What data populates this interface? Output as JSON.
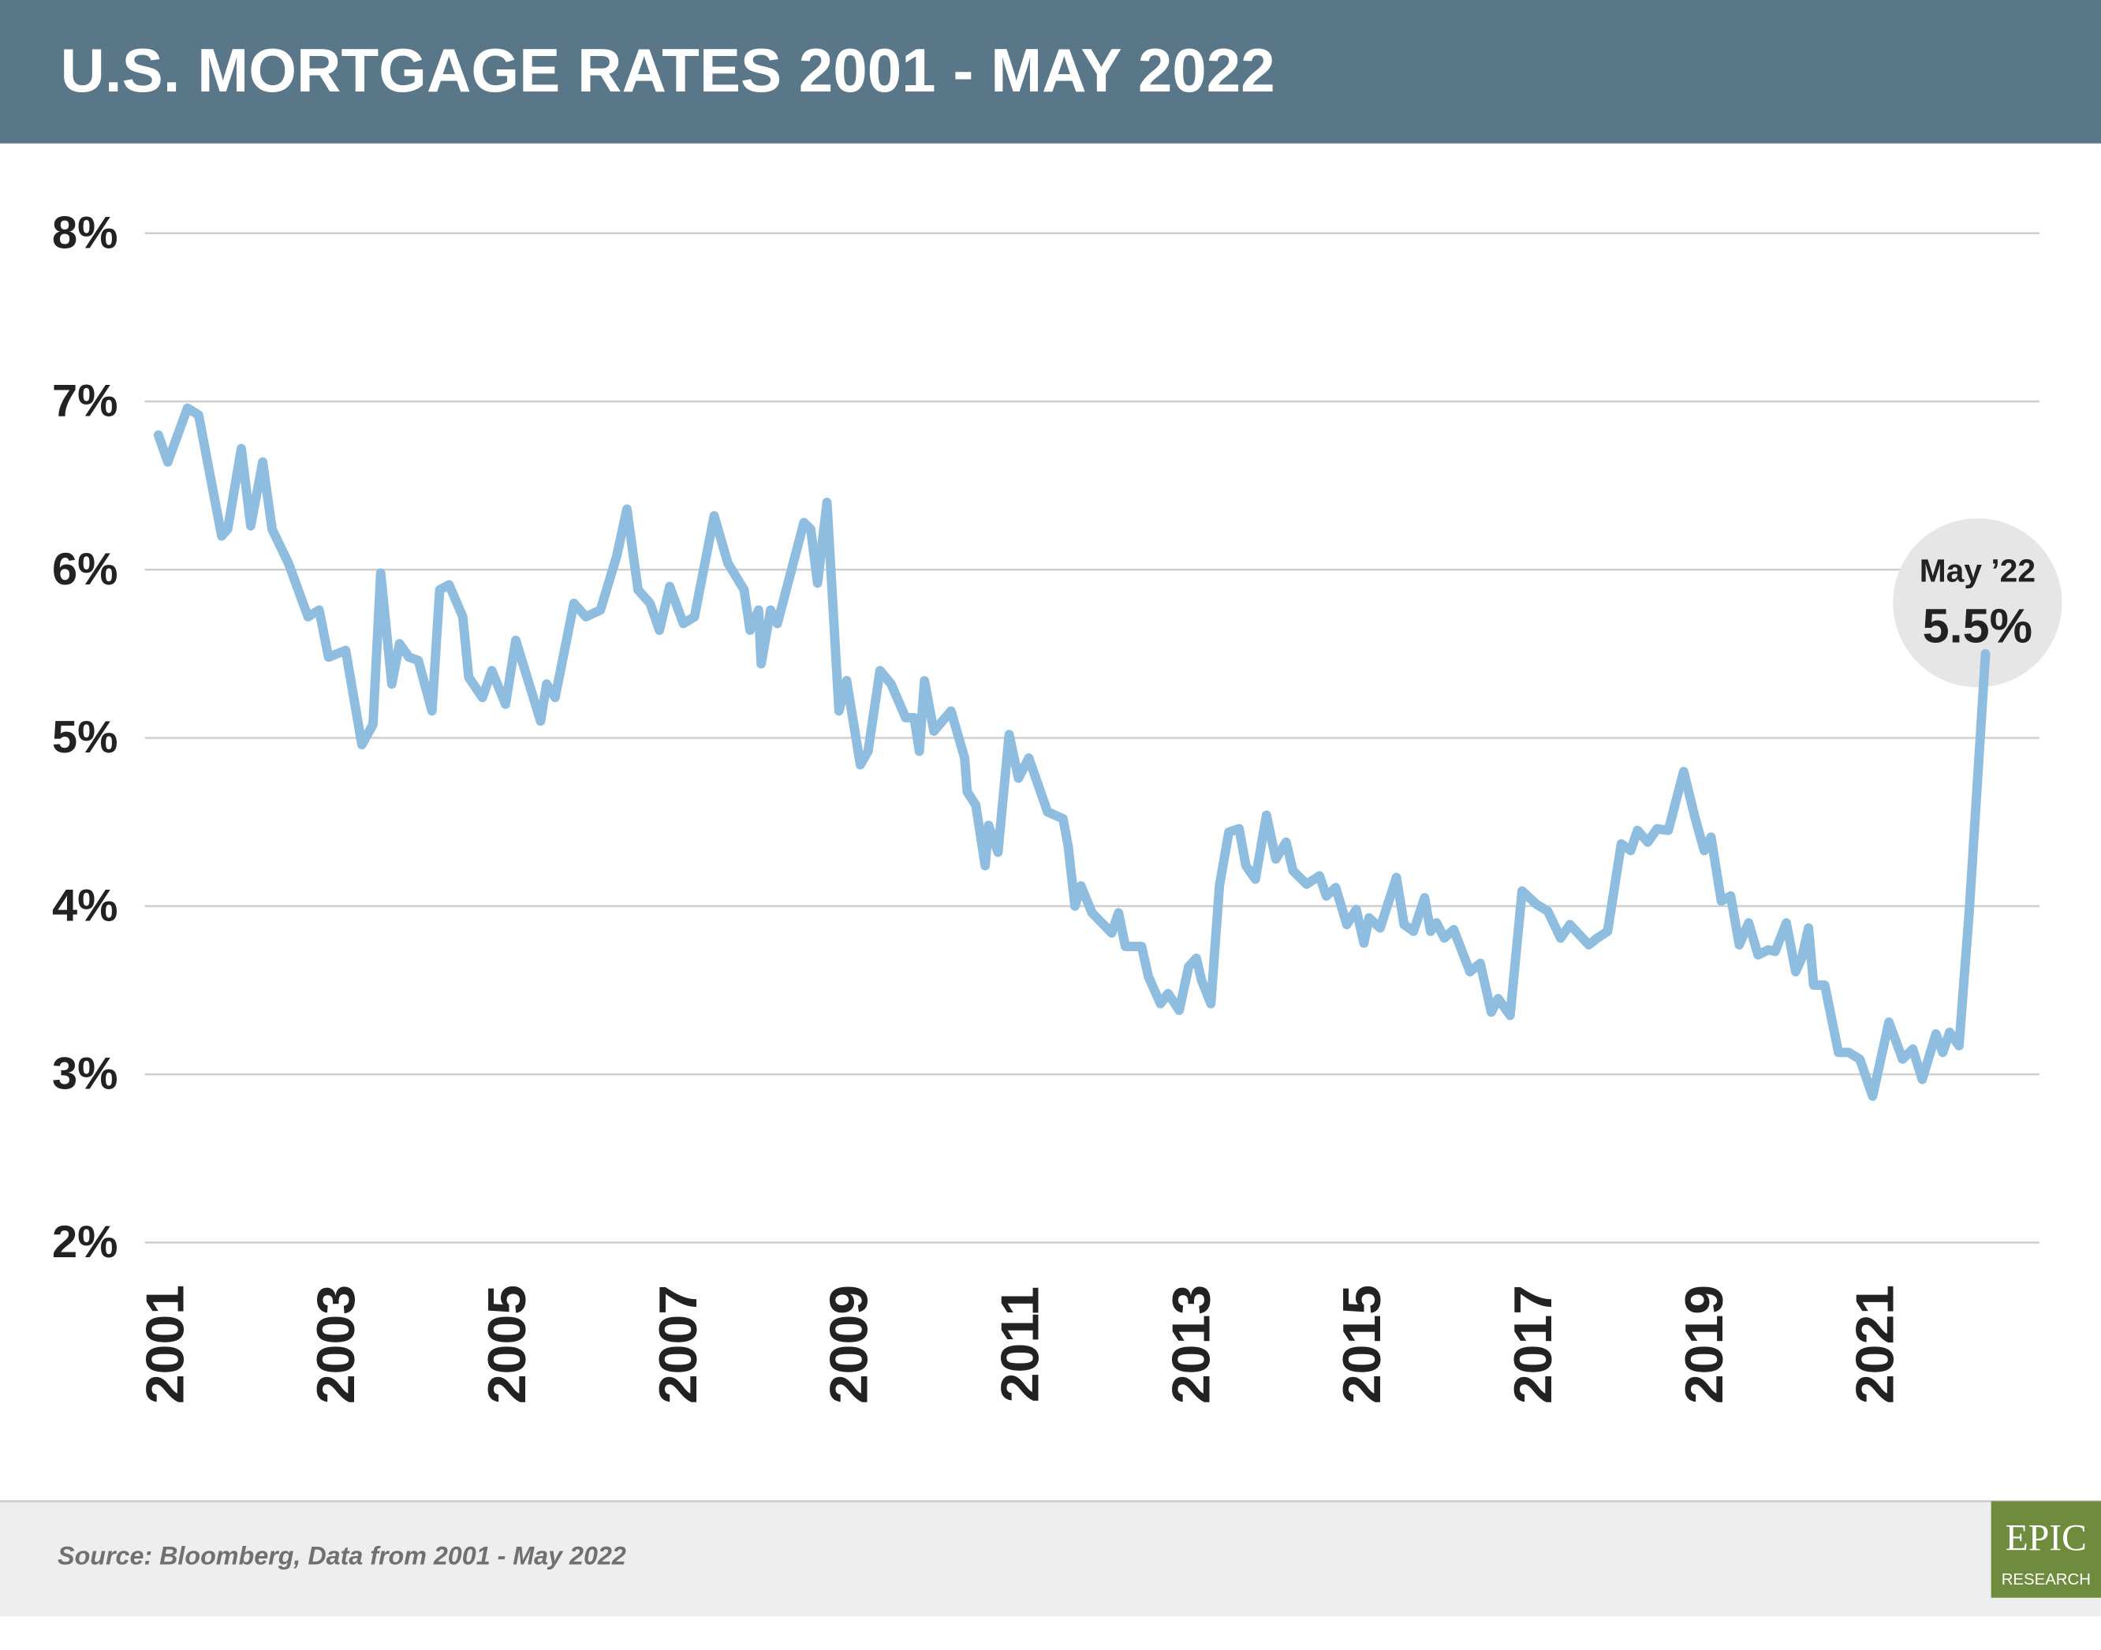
{
  "chart_data": {
    "type": "line",
    "title": "U.S. MORTGAGE RATES 2001 - MAY 2022",
    "source": "Source: Bloomberg, Data from 2001 - May 2022",
    "logo": {
      "top": "EPIC",
      "bottom": "RESEARCH"
    },
    "annotation": {
      "date": "May ’22",
      "text": "5.5%"
    },
    "xlim": [
      2000.84,
      2023.0
    ],
    "xticks": [
      2001,
      2003,
      2005,
      2007,
      2009,
      2011,
      2013,
      2015,
      2017,
      2019,
      2021
    ],
    "ylim": [
      2,
      8
    ],
    "yticks": [
      {
        "value": 2,
        "label": "2%"
      },
      {
        "value": 3,
        "label": "3%"
      },
      {
        "value": 4,
        "label": "4%"
      },
      {
        "value": 5,
        "label": "5%"
      },
      {
        "value": 6,
        "label": "6%"
      },
      {
        "value": 7,
        "label": "7%"
      },
      {
        "value": 8,
        "label": "8%"
      }
    ],
    "grid": true,
    "series": [
      {
        "color": "#8fbde0",
        "x": [
          2001.0,
          2001.11,
          2001.34,
          2001.47,
          2001.74,
          2001.81,
          2001.97,
          2002.08,
          2002.22,
          2002.33,
          2002.52,
          2002.75,
          2002.88,
          2002.99,
          2003.19,
          2003.38,
          2003.51,
          2003.6,
          2003.73,
          2003.82,
          2003.93,
          2004.04,
          2004.2,
          2004.29,
          2004.4,
          2004.56,
          2004.63,
          2004.79,
          2004.9,
          2005.06,
          2005.18,
          2005.47,
          2005.54,
          2005.64,
          2005.86,
          2006.0,
          2006.17,
          2006.36,
          2006.48,
          2006.61,
          2006.75,
          2006.86,
          2006.98,
          2007.14,
          2007.27,
          2007.5,
          2007.66,
          2007.85,
          2007.92,
          2008.02,
          2008.05,
          2008.16,
          2008.24,
          2008.55,
          2008.63,
          2008.71,
          2008.82,
          2008.96,
          2009.05,
          2009.21,
          2009.3,
          2009.44,
          2009.57,
          2009.74,
          2009.84,
          2009.9,
          2009.96,
          2010.07,
          2010.27,
          2010.43,
          2010.46,
          2010.56,
          2010.67,
          2010.71,
          2010.82,
          2010.95,
          2011.06,
          2011.18,
          2011.4,
          2011.58,
          2011.64,
          2011.72,
          2011.79,
          2011.92,
          2012.15,
          2012.23,
          2012.31,
          2012.5,
          2012.58,
          2012.72,
          2012.81,
          2012.94,
          2013.05,
          2013.14,
          2013.2,
          2013.31,
          2013.41,
          2013.52,
          2013.64,
          2013.72,
          2013.83,
          2013.96,
          2014.07,
          2014.19,
          2014.27,
          2014.43,
          2014.58,
          2014.66,
          2014.77,
          2014.9,
          2015.01,
          2015.1,
          2015.16,
          2015.29,
          2015.48,
          2015.57,
          2015.68,
          2015.81,
          2015.88,
          2015.95,
          2016.04,
          2016.15,
          2016.34,
          2016.46,
          2016.59,
          2016.67,
          2016.81,
          2016.95,
          2017.12,
          2017.25,
          2017.4,
          2017.51,
          2017.73,
          2017.83,
          2017.95,
          2018.11,
          2018.22,
          2018.3,
          2018.42,
          2018.53,
          2018.66,
          2018.84,
          2018.97,
          2019.08,
          2019.16,
          2019.28,
          2019.39,
          2019.49,
          2019.6,
          2019.71,
          2019.83,
          2019.91,
          2020.04,
          2020.15,
          2020.22,
          2020.3,
          2020.36,
          2020.49,
          2020.65,
          2020.77,
          2020.9,
          2021.05,
          2021.24,
          2021.4,
          2021.52,
          2021.63,
          2021.79,
          2021.87,
          2021.95,
          2022.06,
          2022.18,
          2022.37
        ],
        "values": [
          6.8,
          6.64,
          6.96,
          6.92,
          6.2,
          6.24,
          6.72,
          6.26,
          6.64,
          6.24,
          6.04,
          5.72,
          5.76,
          5.48,
          5.52,
          4.96,
          5.08,
          5.98,
          5.32,
          5.56,
          5.48,
          5.46,
          5.16,
          5.88,
          5.91,
          5.72,
          5.36,
          5.24,
          5.4,
          5.2,
          5.58,
          5.1,
          5.32,
          5.24,
          5.8,
          5.72,
          5.76,
          6.08,
          6.36,
          5.88,
          5.8,
          5.64,
          5.9,
          5.68,
          5.72,
          6.32,
          6.04,
          5.88,
          5.64,
          5.76,
          5.44,
          5.76,
          5.68,
          6.28,
          6.24,
          5.92,
          6.4,
          5.16,
          5.34,
          4.84,
          4.92,
          5.4,
          5.32,
          5.12,
          5.12,
          4.92,
          5.34,
          5.04,
          5.16,
          4.88,
          4.68,
          4.6,
          4.24,
          4.48,
          4.32,
          5.02,
          4.76,
          4.88,
          4.56,
          4.52,
          4.36,
          4.0,
          4.12,
          3.96,
          3.84,
          3.96,
          3.76,
          3.76,
          3.58,
          3.42,
          3.48,
          3.38,
          3.64,
          3.69,
          3.56,
          3.42,
          4.12,
          4.44,
          4.46,
          4.24,
          4.16,
          4.54,
          4.28,
          4.38,
          4.21,
          4.13,
          4.18,
          4.06,
          4.11,
          3.89,
          3.98,
          3.78,
          3.93,
          3.87,
          4.17,
          3.89,
          3.85,
          4.05,
          3.85,
          3.9,
          3.81,
          3.86,
          3.61,
          3.66,
          3.37,
          3.45,
          3.35,
          4.09,
          4.01,
          3.97,
          3.81,
          3.89,
          3.77,
          3.81,
          3.85,
          4.37,
          4.33,
          4.45,
          4.38,
          4.46,
          4.45,
          4.8,
          4.53,
          4.33,
          4.41,
          4.03,
          4.06,
          3.77,
          3.9,
          3.71,
          3.74,
          3.73,
          3.9,
          3.61,
          3.69,
          3.87,
          3.53,
          3.53,
          3.13,
          3.13,
          3.09,
          2.87,
          3.31,
          3.09,
          3.15,
          2.97,
          3.24,
          3.13,
          3.25,
          3.17,
          3.97,
          5.5
        ]
      }
    ]
  }
}
